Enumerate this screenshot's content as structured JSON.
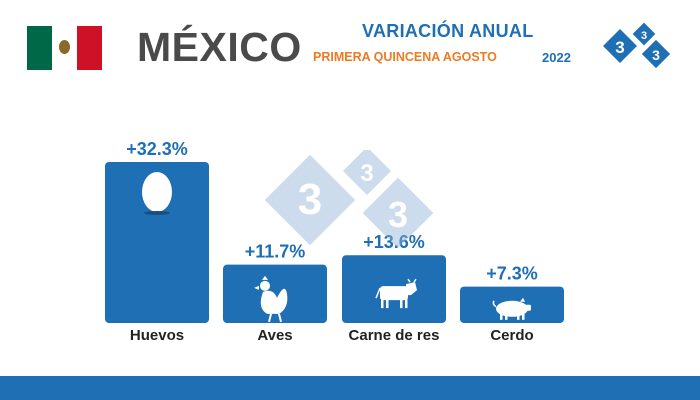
{
  "header": {
    "country": "MÉXICO",
    "title_line1": "VARIACIÓN ANUAL",
    "title_line2": "PRIMERA QUINCENA AGOSTO",
    "year": "2022"
  },
  "logo": {
    "digits": [
      "3",
      "3",
      "3"
    ]
  },
  "watermark": {
    "digits": [
      "3",
      "3",
      "3"
    ]
  },
  "colors": {
    "bar": "#1f6fb5",
    "label": "#1f6fb5",
    "category": "#222222",
    "footer": "#1f6fb5",
    "accent_orange": "#ee7a22"
  },
  "chart_data": {
    "type": "bar",
    "categories": [
      "Huevos",
      "Aves",
      "Carne de res",
      "Cerdo"
    ],
    "values": [
      32.3,
      11.7,
      13.6,
      7.3
    ],
    "value_labels": [
      "+32.3%",
      "+11.7%",
      "+13.6%",
      "+7.3%"
    ],
    "icons": [
      "egg-icon",
      "chicken-icon",
      "cow-icon",
      "pig-icon"
    ],
    "ylim": [
      0,
      35
    ],
    "grid": false,
    "legend": "none"
  }
}
